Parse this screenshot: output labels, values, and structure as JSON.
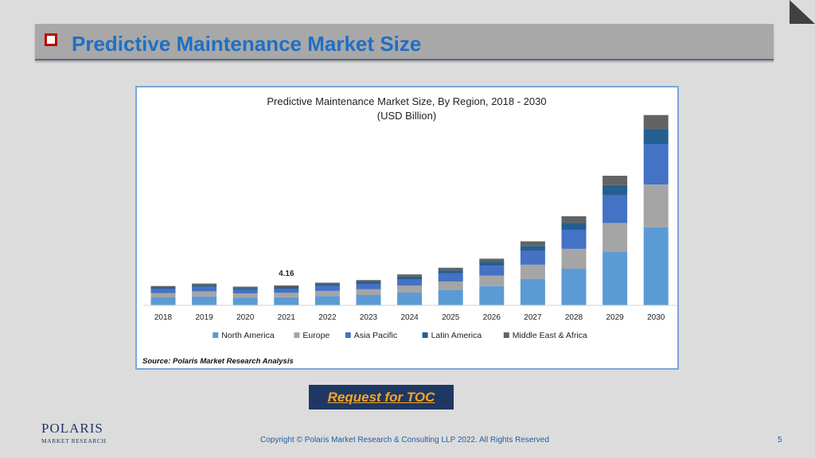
{
  "slide": {
    "title": "Predictive Maintenance Market Size",
    "toc_button": "Request for TOC",
    "logo_main": "POLARIS",
    "logo_sub": "MARKET RESEARCH",
    "copyright": "Copyright © Polaris Market Research & Consulting LLP 2022. All Rights Reserved",
    "page_number": "5"
  },
  "chart_data": {
    "type": "bar",
    "stacked": true,
    "title": "Predictive Maintenance Market Size, By Region, 2018 - 2030",
    "subtitle": "(USD Billion)",
    "source": "Source: Polaris  Market Research Analysis",
    "categories": [
      "2018",
      "2019",
      "2020",
      "2021",
      "2022",
      "2023",
      "2024",
      "2025",
      "2026",
      "2027",
      "2028",
      "2029",
      "2030"
    ],
    "series": [
      {
        "name": "North America",
        "color": "#5b9bd5",
        "values": [
          1.66,
          1.87,
          1.61,
          1.7,
          1.95,
          2.17,
          2.67,
          3.23,
          4.03,
          5.52,
          7.66,
          11.16,
          16.39
        ]
      },
      {
        "name": "Europe",
        "color": "#a5a5a5",
        "values": [
          0.91,
          1.02,
          0.88,
          0.92,
          1.07,
          1.2,
          1.45,
          1.77,
          2.18,
          3.0,
          4.19,
          6.08,
          8.9
        ]
      },
      {
        "name": "Asia Pacific",
        "color": "#4472c4",
        "values": [
          0.86,
          0.97,
          0.84,
          0.88,
          1.01,
          1.13,
          1.38,
          1.68,
          2.09,
          2.86,
          3.98,
          5.79,
          8.52
        ]
      },
      {
        "name": "Latin America",
        "color": "#255e91",
        "values": [
          0.32,
          0.37,
          0.31,
          0.33,
          0.38,
          0.42,
          0.52,
          0.63,
          0.78,
          1.07,
          1.49,
          2.17,
          3.18
        ]
      },
      {
        "name": "Middle East & Africa",
        "color": "#636363",
        "values": [
          0.3,
          0.34,
          0.28,
          0.33,
          0.34,
          0.38,
          0.47,
          0.57,
          0.71,
          0.97,
          1.35,
          1.97,
          2.89
        ]
      }
    ],
    "data_labels": [
      {
        "category": "2021",
        "text": "4.16"
      }
    ],
    "ylim": [
      0,
      40
    ],
    "grid": false,
    "legend_position": "bottom"
  }
}
